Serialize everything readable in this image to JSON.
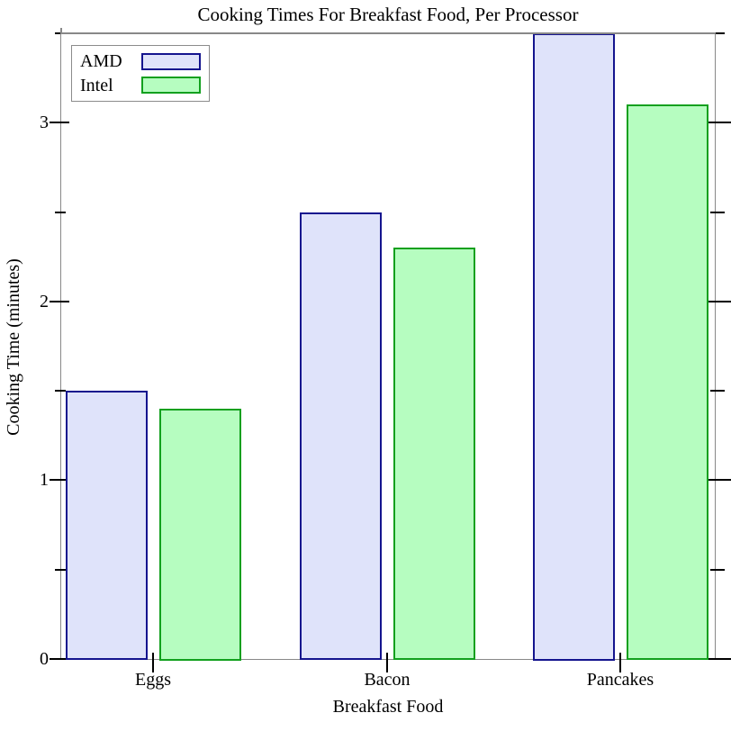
{
  "chart_data": {
    "type": "bar",
    "title": "Cooking Times For Breakfast Food, Per Processor",
    "xlabel": "Breakfast Food",
    "ylabel": "Cooking Time (minutes)",
    "categories": [
      "Eggs",
      "Bacon",
      "Pancakes"
    ],
    "series": [
      {
        "name": "AMD",
        "values": [
          1.5,
          2.5,
          3.5
        ],
        "fill_color": "#dfe3fa",
        "border_color": "#14148e"
      },
      {
        "name": "Intel",
        "values": [
          1.4,
          2.3,
          3.1
        ],
        "fill_color": "#b6fdc0",
        "border_color": "#12a01e"
      }
    ],
    "ylim": [
      0,
      3.5
    ],
    "y_major_ticks": [
      0,
      1,
      2,
      3
    ],
    "y_minor_ticks": [
      0.5,
      1.5,
      2.5,
      3.5
    ],
    "grid": false,
    "legend_position": "top-left",
    "axis_frame_color": "#888888",
    "tick_color": "#000000"
  }
}
